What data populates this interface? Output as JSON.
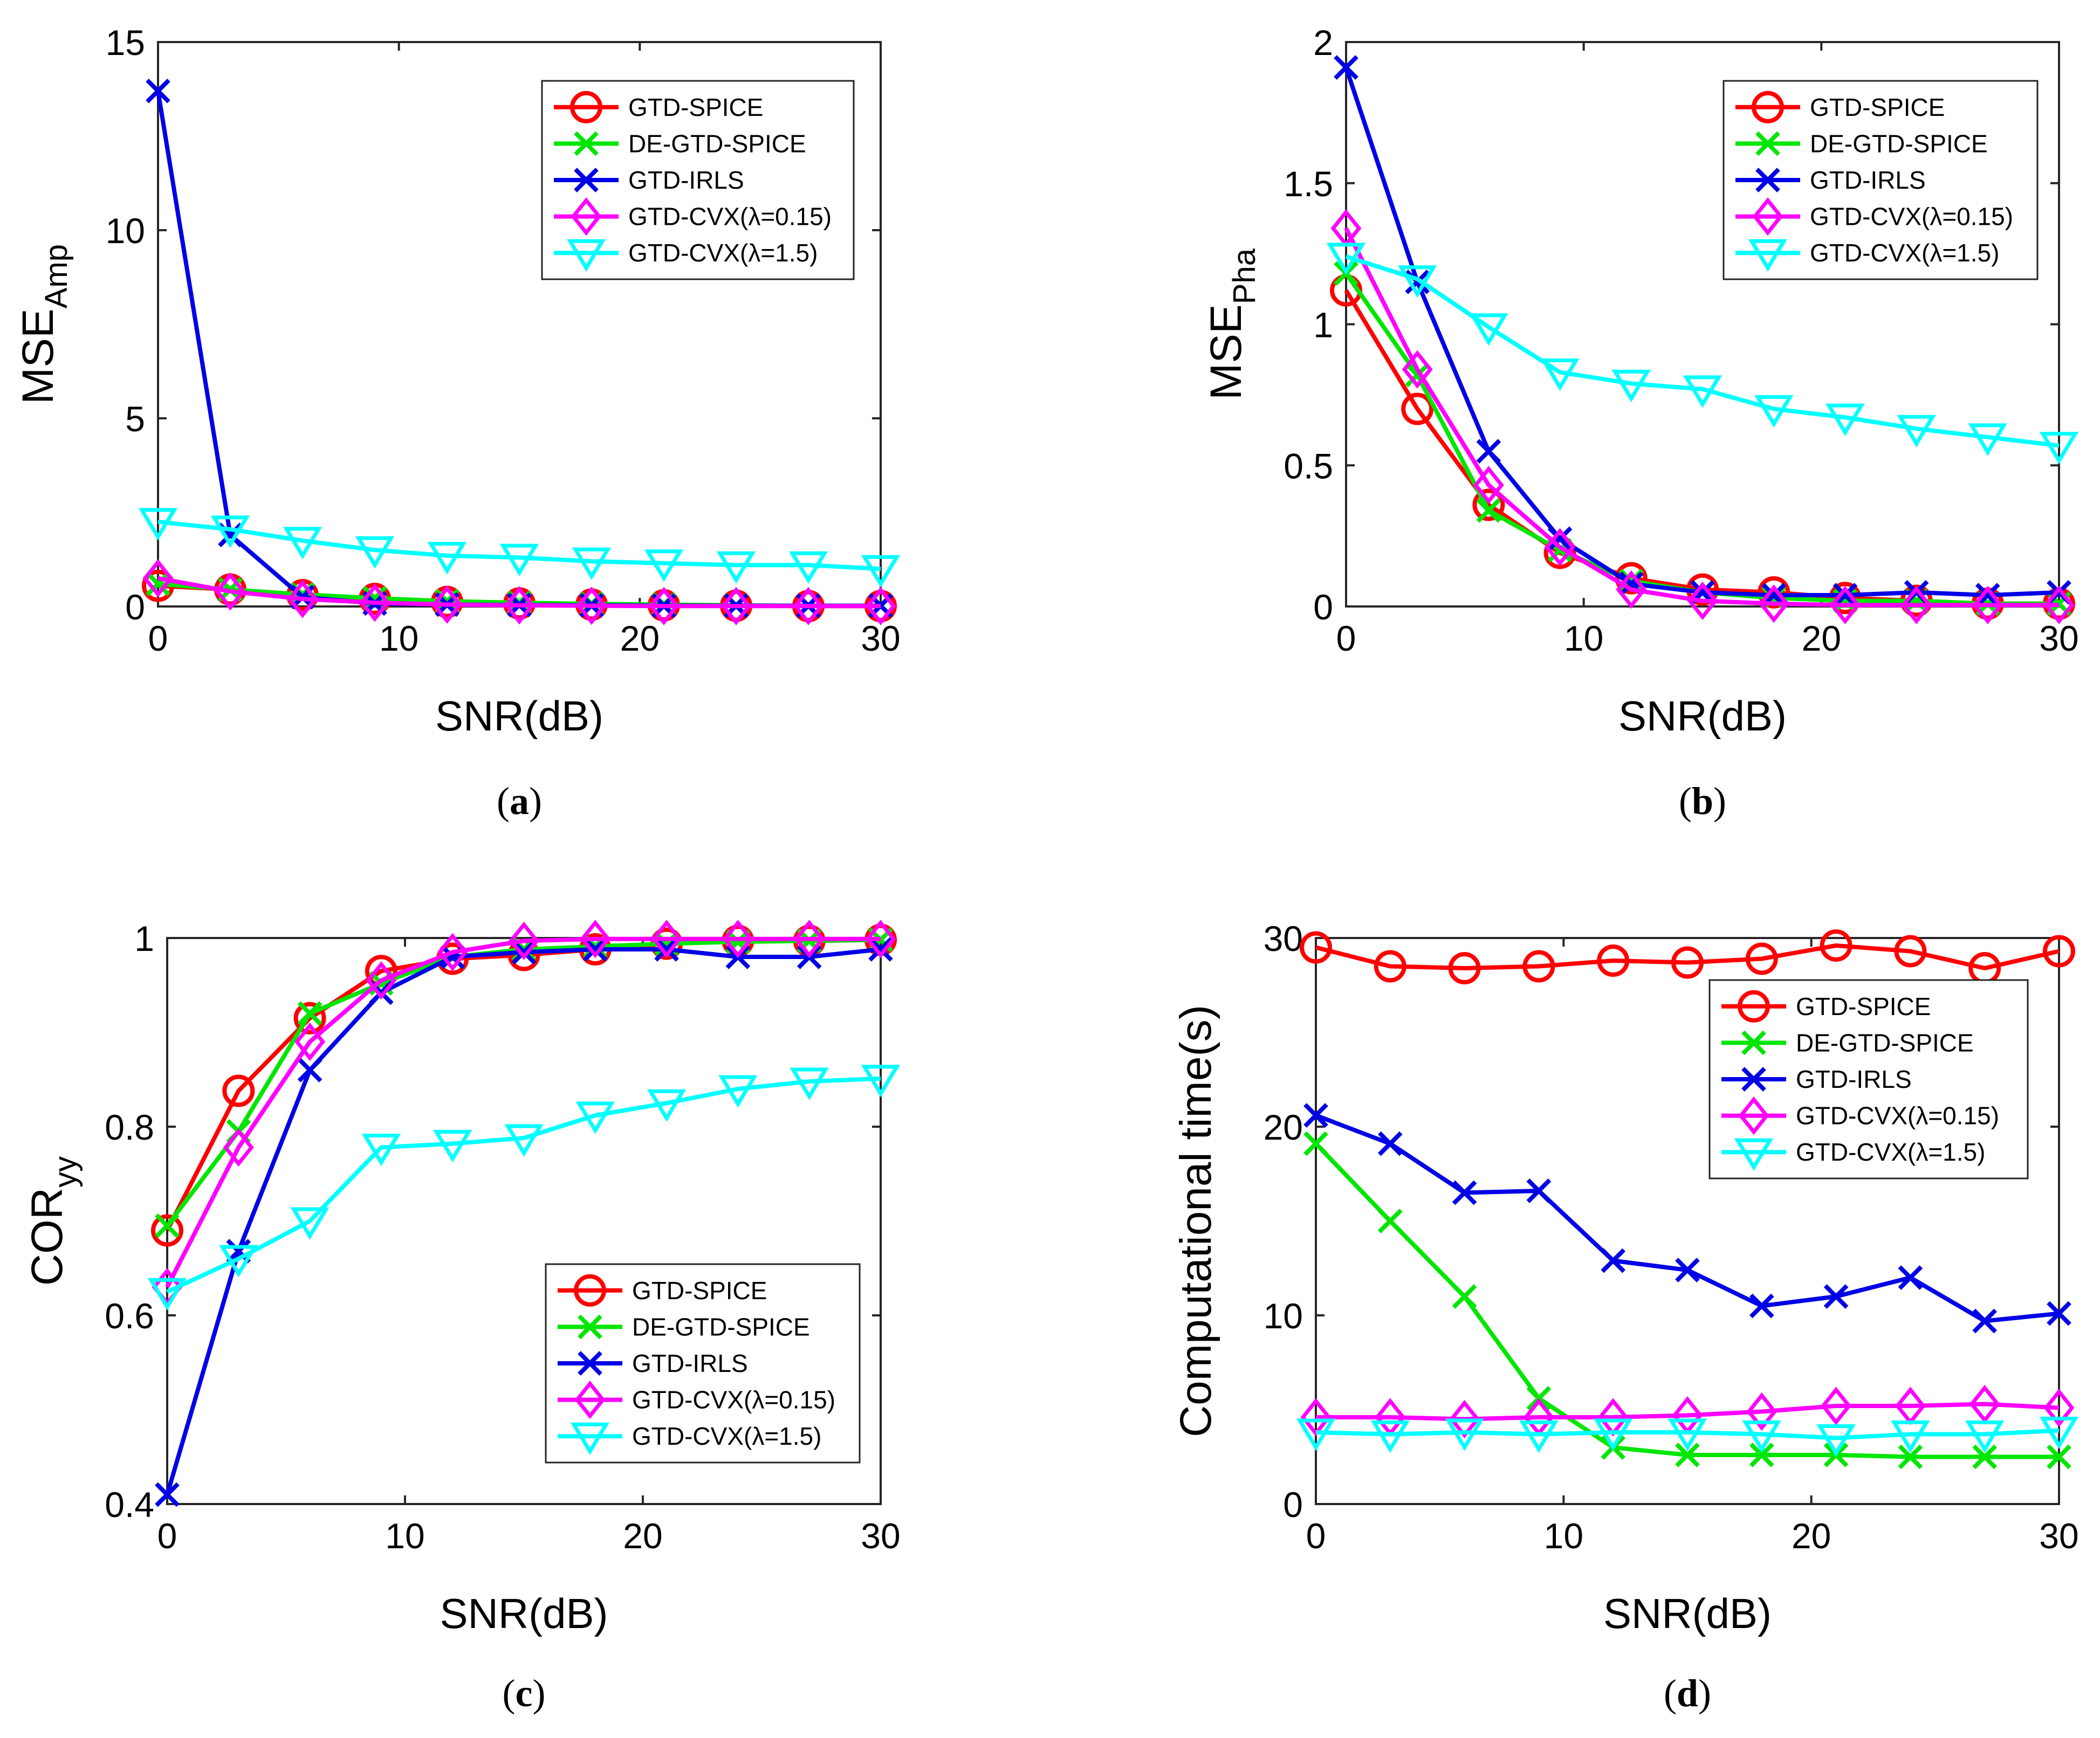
{
  "colors": {
    "GTD-SPICE": "#ff0000",
    "DE-GTD-SPICE": "#00e600",
    "GTD-IRLS": "#0000e6",
    "GTD-CVX(λ=0.15)": "#ff00ff",
    "GTD-CVX(λ=1.5)": "#00ffff"
  },
  "markers": {
    "GTD-SPICE": "circle",
    "DE-GTD-SPICE": "x",
    "GTD-IRLS": "x",
    "GTD-CVX(λ=0.15)": "diamond",
    "GTD-CVX(λ=1.5)": "triangle-down"
  },
  "chart_data": [
    {
      "id": "a",
      "caption": "a",
      "type": "line",
      "xlabel": "SNR(dB)",
      "ylabel": "MSE",
      "ylabel_sub": "Amp",
      "x": [
        0,
        3,
        6,
        9,
        12,
        15,
        18,
        21,
        24,
        27,
        30
      ],
      "xlim": [
        0,
        30
      ],
      "ylim": [
        0,
        15
      ],
      "xticks": [
        0,
        10,
        20,
        30
      ],
      "yticks": [
        0,
        5,
        10,
        15
      ],
      "legend_position": "top-right",
      "series": [
        {
          "name": "GTD-SPICE",
          "values": [
            0.55,
            0.45,
            0.3,
            0.2,
            0.12,
            0.08,
            0.05,
            0.03,
            0.02,
            0.01,
            0.01
          ]
        },
        {
          "name": "DE-GTD-SPICE",
          "values": [
            0.6,
            0.45,
            0.32,
            0.22,
            0.14,
            0.1,
            0.07,
            0.05,
            0.03,
            0.02,
            0.02
          ]
        },
        {
          "name": "GTD-IRLS",
          "values": [
            13.7,
            1.9,
            0.25,
            0.08,
            0.05,
            0.04,
            0.03,
            0.02,
            0.02,
            0.02,
            0.02
          ]
        },
        {
          "name": "GTD-CVX(λ=0.15)",
          "values": [
            0.75,
            0.4,
            0.2,
            0.1,
            0.05,
            0.03,
            0.02,
            0.01,
            0.01,
            0.01,
            0.01
          ]
        },
        {
          "name": "GTD-CVX(λ=1.5)",
          "values": [
            2.25,
            2.05,
            1.75,
            1.5,
            1.35,
            1.3,
            1.2,
            1.15,
            1.1,
            1.1,
            1.0
          ]
        }
      ]
    },
    {
      "id": "b",
      "caption": "b",
      "type": "line",
      "xlabel": "SNR(dB)",
      "ylabel": "MSE",
      "ylabel_sub": "Pha",
      "x": [
        0,
        3,
        6,
        9,
        12,
        15,
        18,
        21,
        24,
        27,
        30
      ],
      "xlim": [
        0,
        30
      ],
      "ylim": [
        0,
        2
      ],
      "xticks": [
        0,
        10,
        20,
        30
      ],
      "yticks": [
        0,
        0.5,
        1,
        1.5,
        2
      ],
      "legend_position": "top-right",
      "series": [
        {
          "name": "GTD-SPICE",
          "values": [
            1.12,
            0.7,
            0.36,
            0.19,
            0.1,
            0.06,
            0.05,
            0.03,
            0.02,
            0.01,
            0.01
          ]
        },
        {
          "name": "DE-GTD-SPICE",
          "values": [
            1.18,
            0.82,
            0.34,
            0.2,
            0.09,
            0.05,
            0.03,
            0.02,
            0.02,
            0.01,
            0.01
          ]
        },
        {
          "name": "GTD-IRLS",
          "values": [
            1.91,
            1.15,
            0.55,
            0.24,
            0.08,
            0.05,
            0.04,
            0.04,
            0.05,
            0.04,
            0.05
          ]
        },
        {
          "name": "GTD-CVX(λ=0.15)",
          "values": [
            1.34,
            0.84,
            0.43,
            0.21,
            0.06,
            0.02,
            0.01,
            0.005,
            0.005,
            0.005,
            0.005
          ]
        },
        {
          "name": "GTD-CVX(λ=1.5)",
          "values": [
            1.24,
            1.16,
            0.99,
            0.83,
            0.79,
            0.77,
            0.7,
            0.67,
            0.63,
            0.6,
            0.57
          ]
        }
      ]
    },
    {
      "id": "c",
      "caption": "c",
      "type": "line",
      "xlabel": "SNR(dB)",
      "ylabel": "COR",
      "ylabel_sub": "yy",
      "x": [
        0,
        3,
        6,
        9,
        12,
        15,
        18,
        21,
        24,
        27,
        30
      ],
      "xlim": [
        0,
        30
      ],
      "ylim": [
        0.4,
        1
      ],
      "xticks": [
        0,
        10,
        20,
        30
      ],
      "yticks": [
        0.4,
        0.6,
        0.8,
        1
      ],
      "legend_position": "bottom-right",
      "series": [
        {
          "name": "GTD-SPICE",
          "values": [
            0.69,
            0.838,
            0.915,
            0.965,
            0.978,
            0.982,
            0.988,
            0.994,
            0.997,
            0.997,
            0.998
          ]
        },
        {
          "name": "DE-GTD-SPICE",
          "values": [
            0.695,
            0.795,
            0.92,
            0.952,
            0.98,
            0.988,
            0.991,
            0.994,
            0.996,
            0.997,
            0.998
          ]
        },
        {
          "name": "GTD-IRLS",
          "values": [
            0.41,
            0.668,
            0.86,
            0.942,
            0.98,
            0.985,
            0.988,
            0.988,
            0.98,
            0.98,
            0.988
          ]
        },
        {
          "name": "GTD-CVX(λ=0.15)",
          "values": [
            0.63,
            0.778,
            0.89,
            0.955,
            0.985,
            0.997,
            0.999,
            0.999,
            0.999,
            0.999,
            0.999
          ]
        },
        {
          "name": "GTD-CVX(λ=1.5)",
          "values": [
            0.625,
            0.66,
            0.7,
            0.778,
            0.782,
            0.788,
            0.812,
            0.825,
            0.84,
            0.848,
            0.851
          ]
        }
      ]
    },
    {
      "id": "d",
      "caption": "d",
      "type": "line",
      "xlabel": "SNR(dB)",
      "ylabel": "Computational time(s)",
      "ylabel_sub": "",
      "x": [
        0,
        3,
        6,
        9,
        12,
        15,
        18,
        21,
        24,
        27,
        30
      ],
      "xlim": [
        0,
        30
      ],
      "ylim": [
        0,
        30
      ],
      "xticks": [
        0,
        10,
        20,
        30
      ],
      "yticks": [
        0,
        10,
        20,
        30
      ],
      "legend_position": "top-right",
      "series": [
        {
          "name": "GTD-SPICE",
          "values": [
            29.5,
            28.5,
            28.4,
            28.5,
            28.8,
            28.7,
            28.9,
            29.6,
            29.3,
            28.4,
            29.3
          ]
        },
        {
          "name": "DE-GTD-SPICE",
          "values": [
            19.1,
            15.0,
            11.0,
            5.6,
            3.0,
            2.6,
            2.6,
            2.6,
            2.5,
            2.5,
            2.5
          ]
        },
        {
          "name": "GTD-IRLS",
          "values": [
            20.6,
            19.1,
            16.5,
            16.6,
            12.9,
            12.4,
            10.5,
            11.0,
            12.0,
            9.7,
            10.1
          ]
        },
        {
          "name": "GTD-CVX(λ=0.15)",
          "values": [
            4.6,
            4.6,
            4.5,
            4.6,
            4.6,
            4.7,
            4.9,
            5.2,
            5.2,
            5.3,
            5.1
          ]
        },
        {
          "name": "GTD-CVX(λ=1.5)",
          "values": [
            3.8,
            3.7,
            3.8,
            3.7,
            3.8,
            3.8,
            3.7,
            3.5,
            3.7,
            3.7,
            3.9
          ]
        }
      ]
    }
  ]
}
